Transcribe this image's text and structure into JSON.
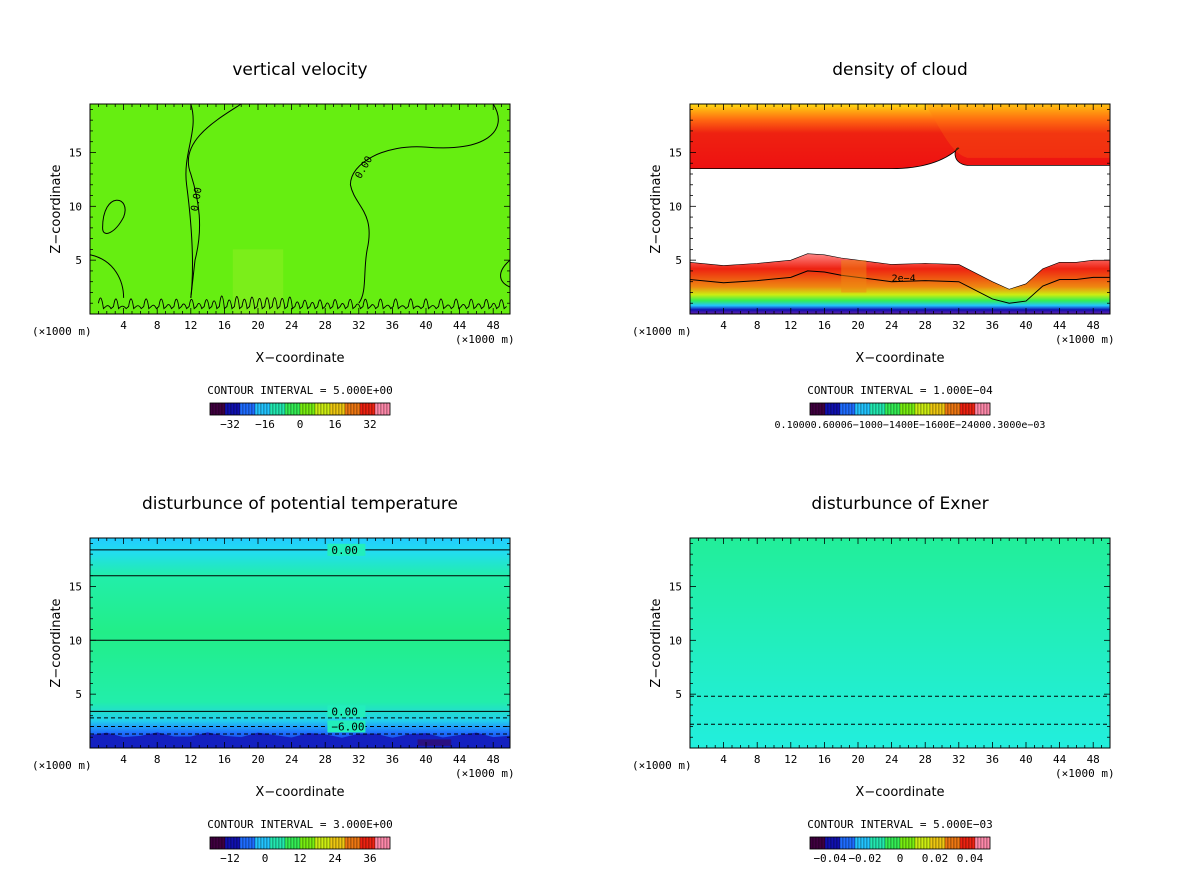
{
  "figure": {
    "unit_label": "(×1000 m)",
    "xlabel": "X−coordinate",
    "ylabel": "Z−coordinate",
    "x_ticks": [
      "4",
      "8",
      "12",
      "16",
      "20",
      "24",
      "28",
      "32",
      "36",
      "40",
      "44",
      "48"
    ],
    "y_ticks": [
      "5",
      "10",
      "15"
    ]
  },
  "chart_data": [
    {
      "type": "heatmap",
      "title": "vertical velocity",
      "xlabel": "X−coordinate",
      "ylabel": "Z−coordinate",
      "xlim": [
        0,
        50
      ],
      "ylim": [
        0,
        19.5
      ],
      "contour_interval": "CONTOUR INTERVAL = 5.000E+00",
      "colorbar_ticks": [
        "−32",
        "−16",
        "0",
        "16",
        "32"
      ],
      "contour_labels": [
        "0.00",
        "0.00"
      ],
      "fill_color": "#66ee11",
      "colorbar": [
        "#400040",
        "#1010b0",
        "#1e6cff",
        "#22c4ff",
        "#22e8b0",
        "#33ee55",
        "#77ee11",
        "#ccee11",
        "#eec811",
        "#ee7711",
        "#ee2211",
        "#ff88aa"
      ]
    },
    {
      "type": "heatmap",
      "title": "density of cloud",
      "xlabel": "X−coordinate",
      "ylabel": "Z−coordinate",
      "xlim": [
        0,
        50
      ],
      "ylim": [
        0,
        19.5
      ],
      "contour_interval": "CONTOUR INTERVAL = 1.000E−04",
      "colorbar_ticks_text": "0.10000.60006−1000−1400E−1600E−24000.3000e−03",
      "contour_labels": [
        "2e−4"
      ],
      "upper_band": {
        "bottom_km": 13.5,
        "top_km": 19.5,
        "colors": [
          "#ee1111",
          "#ff6611",
          "#ffaa11",
          "#ffdd11"
        ]
      },
      "lower_band": {
        "surface_x": [
          0,
          4,
          8,
          12,
          14,
          16,
          18,
          20,
          22,
          24,
          28,
          32,
          36,
          38,
          40,
          42,
          44,
          46,
          48,
          50
        ],
        "top_z": [
          4.8,
          4.5,
          4.7,
          5.0,
          5.6,
          5.5,
          5.2,
          5.0,
          4.8,
          4.6,
          4.7,
          4.6,
          3.0,
          2.3,
          2.8,
          4.2,
          4.8,
          4.8,
          5.0,
          5.0
        ]
      },
      "colorbar": [
        "#400040",
        "#1010b0",
        "#1e6cff",
        "#22c4ff",
        "#22e8b0",
        "#33ee55",
        "#77ee11",
        "#ccee11",
        "#eec811",
        "#ee7711",
        "#ee2211",
        "#ff88aa"
      ]
    },
    {
      "type": "heatmap",
      "title": "disturbunce of potential temperature",
      "xlabel": "X−coordinate",
      "ylabel": "Z−coordinate",
      "xlim": [
        0,
        50
      ],
      "ylim": [
        0,
        19.5
      ],
      "contour_interval": "CONTOUR INTERVAL = 3.000E+00",
      "colorbar_ticks": [
        "−12",
        "0",
        "12",
        "24",
        "36"
      ],
      "contour_labels": [
        "0.00",
        "0.00",
        "−6.00"
      ],
      "contour_levels_z": [
        18.4,
        16.0,
        10.0,
        3.4,
        2.8,
        2.0,
        1.3
      ],
      "colorbar": [
        "#400040",
        "#1010b0",
        "#1e6cff",
        "#22c4ff",
        "#22e8b0",
        "#33ee55",
        "#77ee11",
        "#ccee11",
        "#eec811",
        "#ee7711",
        "#ee2211",
        "#ff88aa"
      ]
    },
    {
      "type": "heatmap",
      "title": "disturbunce of Exner",
      "xlabel": "X−coordinate",
      "ylabel": "Z−coordinate",
      "xlim": [
        0,
        50
      ],
      "ylim": [
        0,
        19.5
      ],
      "contour_interval": "CONTOUR INTERVAL = 5.000E−03",
      "colorbar_ticks": [
        "−0.04",
        "−0.02",
        "0",
        "0.02",
        "0.04"
      ],
      "contour_levels_z": [
        4.8,
        2.2
      ],
      "colorbar": [
        "#400040",
        "#1010b0",
        "#1e6cff",
        "#22c4ff",
        "#22e8b0",
        "#33ee55",
        "#77ee11",
        "#ccee11",
        "#eec811",
        "#ee7711",
        "#ee2211",
        "#ff88aa"
      ]
    }
  ]
}
